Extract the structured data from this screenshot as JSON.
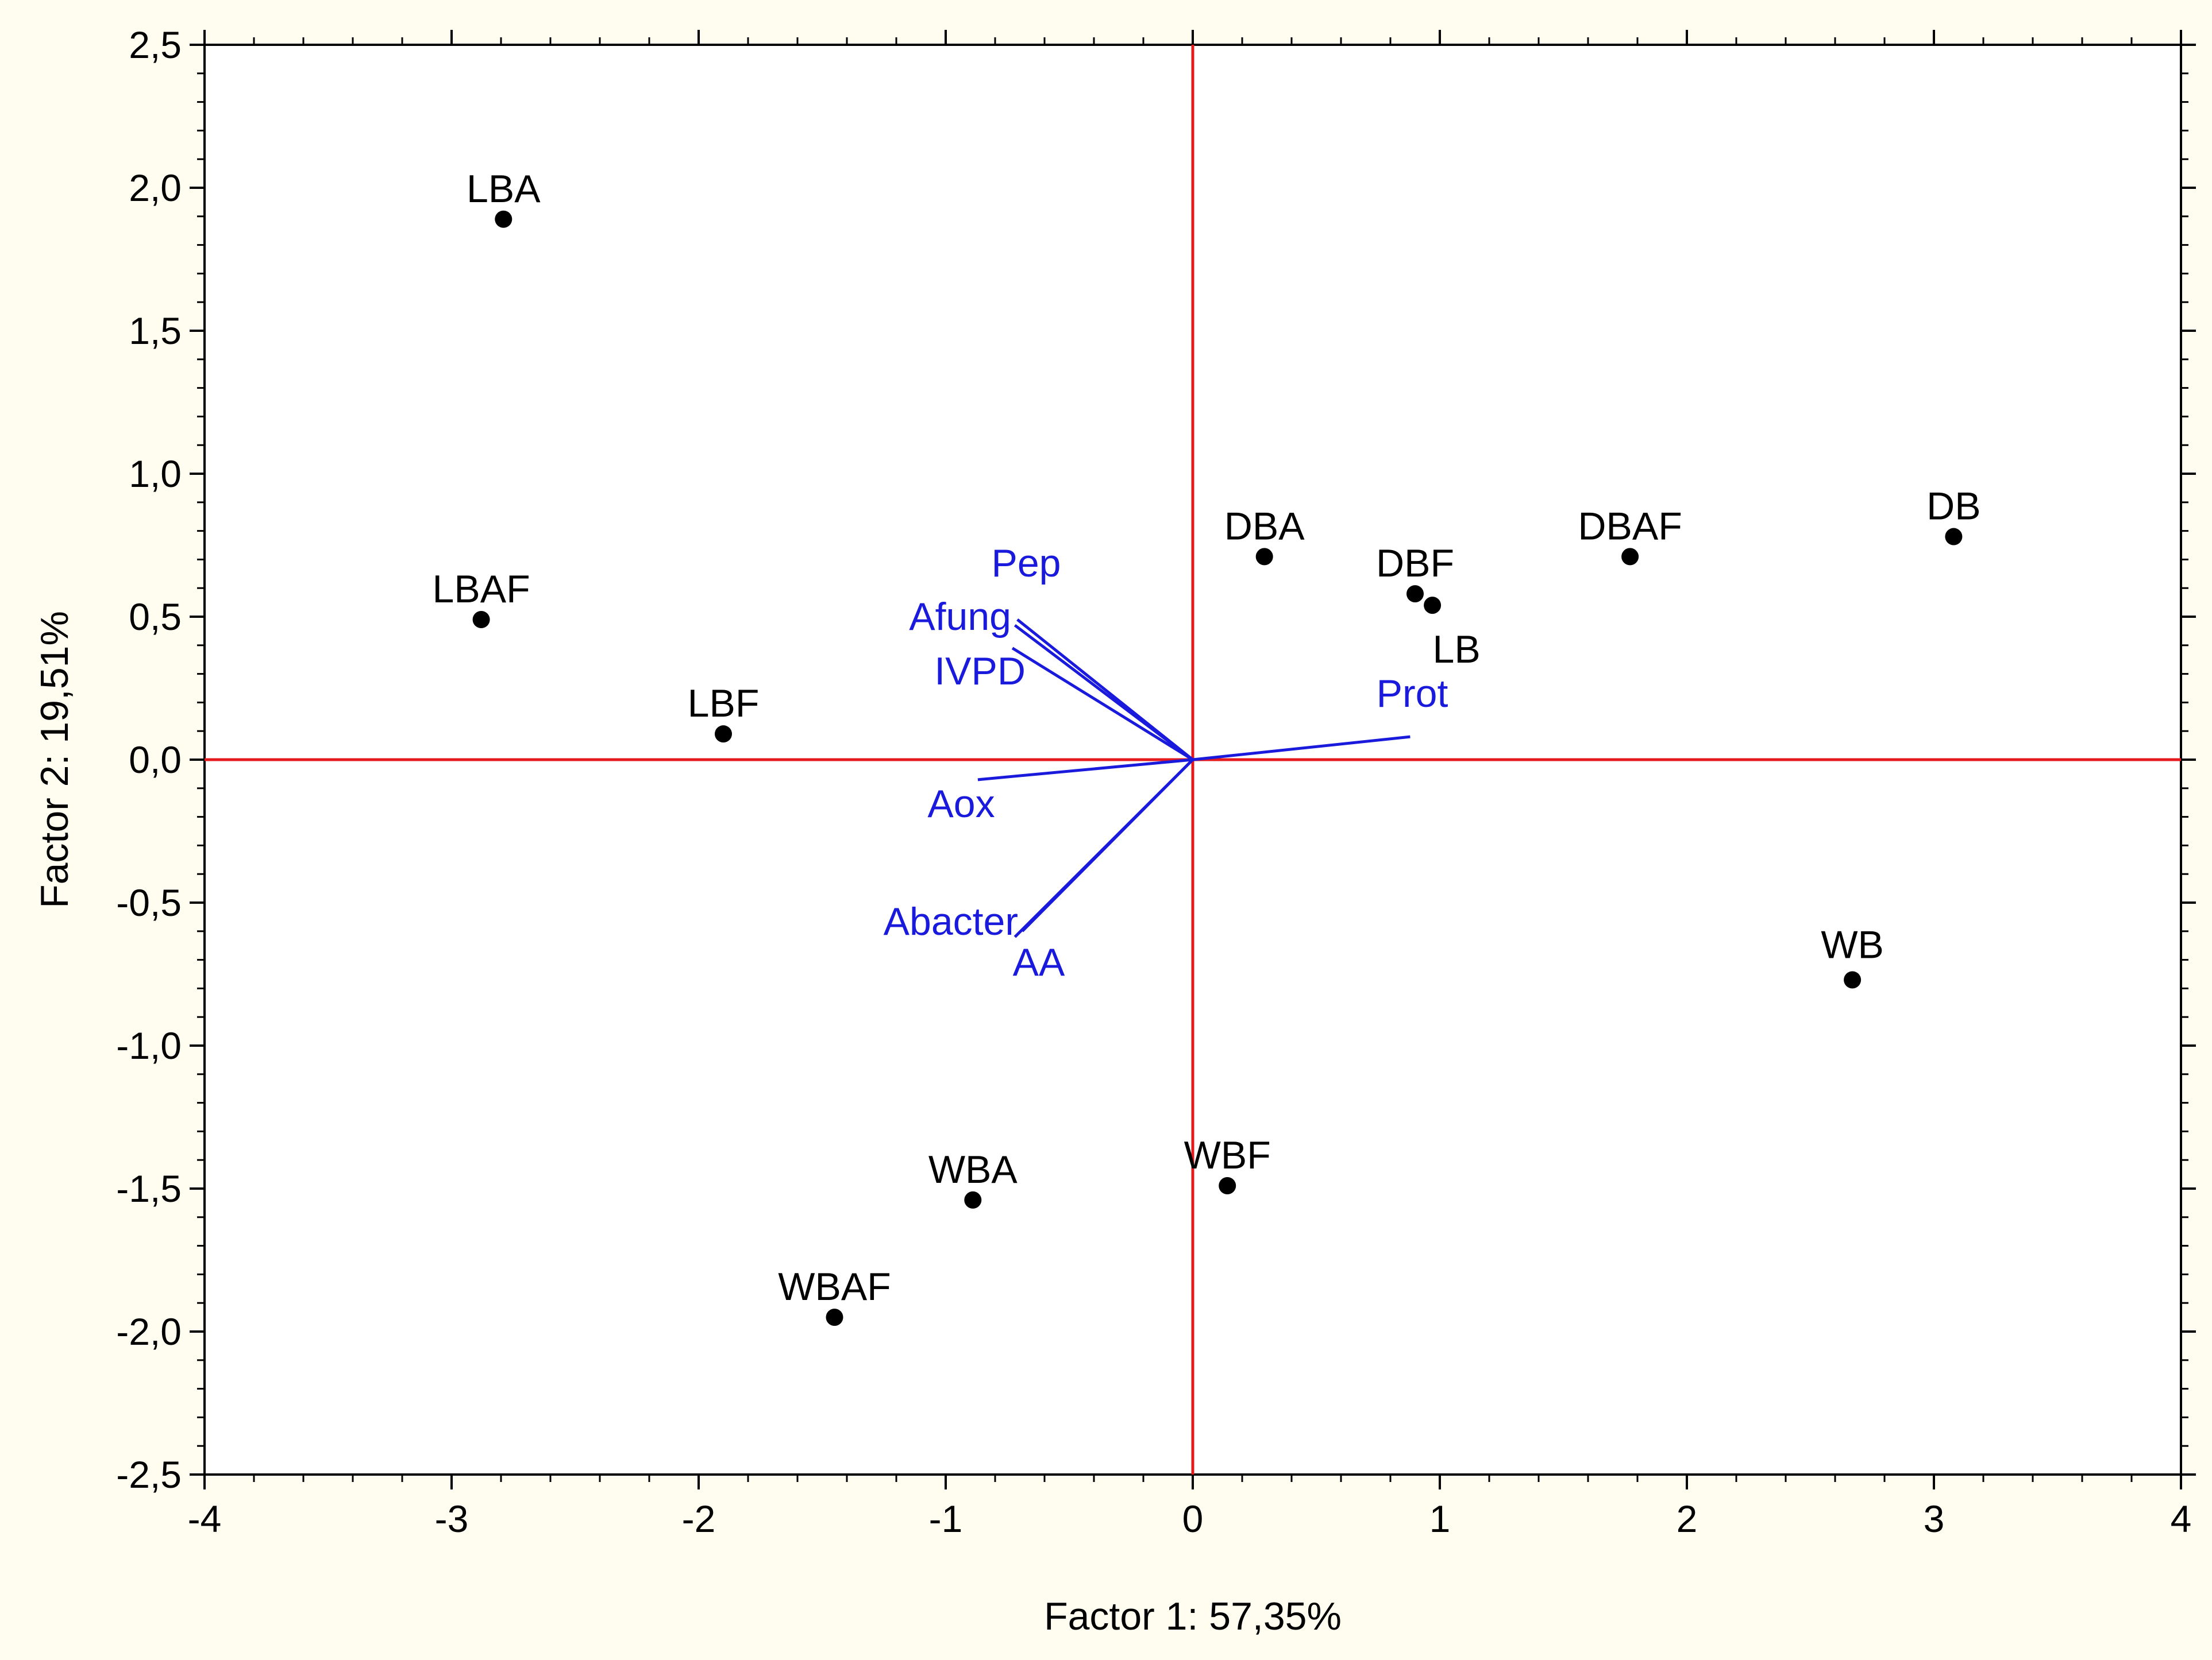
{
  "chart_data": {
    "type": "scatter",
    "xlabel": "Factor 1: 57,35%",
    "ylabel": "Factor 2: 19,51%",
    "xlim": [
      -4,
      4
    ],
    "ylim": [
      -2.5,
      2.5
    ],
    "x_ticks": [
      "-4",
      "-3",
      "-2",
      "-1",
      "0",
      "1",
      "2",
      "3",
      "4"
    ],
    "y_ticks": [
      "-2,5",
      "-2,0",
      "-1,5",
      "-1,0",
      "-0,5",
      "0,0",
      "0,5",
      "1,0",
      "1,5",
      "2,0",
      "2,5"
    ],
    "grid": false,
    "reference_lines": {
      "x": 0,
      "y": 0,
      "color": "#e41a1c"
    },
    "points": [
      {
        "label": "LBA",
        "x": -2.79,
        "y": 1.89
      },
      {
        "label": "LBAF",
        "x": -2.88,
        "y": 0.49
      },
      {
        "label": "LBF",
        "x": -1.9,
        "y": 0.09
      },
      {
        "label": "DBA",
        "x": 0.29,
        "y": 0.71
      },
      {
        "label": "DBF",
        "x": 0.9,
        "y": 0.58
      },
      {
        "label": "LB",
        "x": 0.97,
        "y": 0.54
      },
      {
        "label": "DBAF",
        "x": 1.77,
        "y": 0.71
      },
      {
        "label": "DB",
        "x": 3.08,
        "y": 0.78
      },
      {
        "label": "WB",
        "x": 2.67,
        "y": -0.77
      },
      {
        "label": "WBF",
        "x": 0.14,
        "y": -1.49
      },
      {
        "label": "WBA",
        "x": -0.89,
        "y": -1.54
      },
      {
        "label": "WBAF",
        "x": -1.45,
        "y": -1.95
      }
    ],
    "vectors": [
      {
        "label": "Pep",
        "x": -0.71,
        "y": 0.49
      },
      {
        "label": "Afung",
        "x": -0.72,
        "y": 0.47
      },
      {
        "label": "IVPD",
        "x": -0.73,
        "y": 0.39
      },
      {
        "label": "Prot",
        "x": 0.88,
        "y": 0.08
      },
      {
        "label": "Aox",
        "x": -0.87,
        "y": -0.07
      },
      {
        "label": "Abacter",
        "x": -0.69,
        "y": -0.6
      },
      {
        "label": "AA",
        "x": -0.72,
        "y": -0.62
      }
    ],
    "point_color": "#000000",
    "vector_color": "#1a1adc",
    "axis_color": "#000000"
  }
}
